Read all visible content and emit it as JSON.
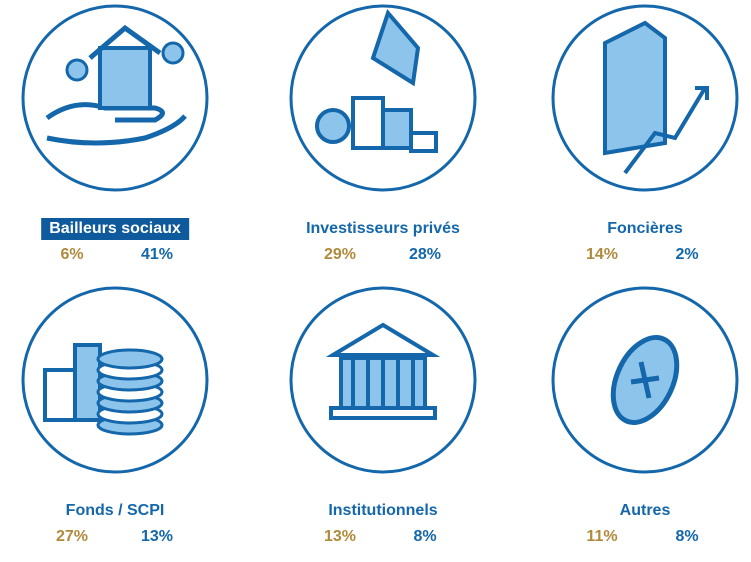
{
  "items": [
    {
      "label": "Bailleurs sociaux",
      "share_a": "6%",
      "share_b": "41%"
    },
    {
      "label": "Investisseurs privés",
      "share_a": "29%",
      "share_b": "28%"
    },
    {
      "label": "Foncières",
      "share_a": "14%",
      "share_b": "2%"
    },
    {
      "label": "Fonds / SCPI",
      "share_a": "27%",
      "share_b": "13%"
    },
    {
      "label": "Institutionnels",
      "share_a": "13%",
      "share_b": "8%"
    },
    {
      "label": "Autres",
      "share_a": "11%",
      "share_b": "8%"
    }
  ]
}
